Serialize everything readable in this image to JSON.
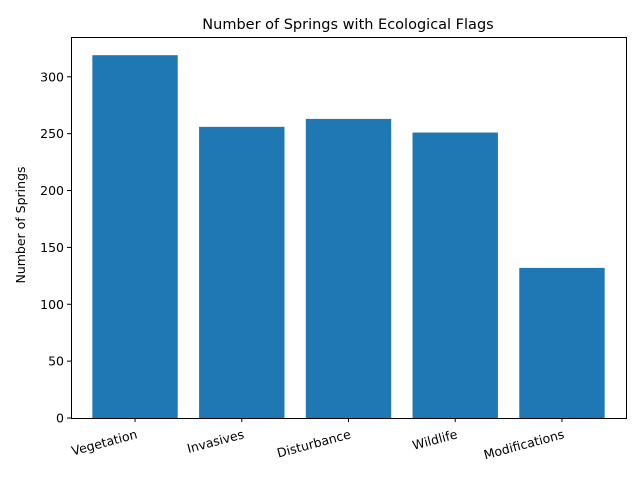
{
  "chart_data": {
    "type": "bar",
    "title": "Number of Springs with Ecological Flags",
    "xlabel": "",
    "ylabel": "Number of Springs",
    "categories": [
      "Vegetation",
      "Invasives",
      "Disturbance",
      "Wildlife",
      "Modifications"
    ],
    "values": [
      319,
      256,
      263,
      251,
      132
    ],
    "ylim": [
      0,
      335
    ],
    "yticks": [
      0,
      50,
      100,
      150,
      200,
      250,
      300
    ],
    "bar_color": "#1f77b4",
    "grid": false,
    "legend": "none"
  }
}
